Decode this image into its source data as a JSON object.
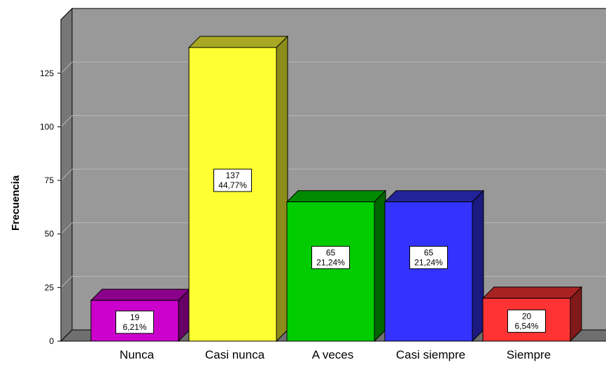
{
  "chart_data": {
    "type": "bar",
    "title": "",
    "xlabel": "",
    "ylabel": "Frecuencia",
    "categories": [
      "Nunca",
      "Casi nunca",
      "A veces",
      "Casi siempre",
      "Siempre"
    ],
    "values": [
      19,
      137,
      65,
      65,
      20
    ],
    "percent_labels": [
      "6,21%",
      "44,77%",
      "21,24%",
      "21,24%",
      "6,54%"
    ],
    "yticks": [
      "0",
      "25",
      "50",
      "75",
      "100",
      "125"
    ],
    "ylim": [
      0,
      150
    ],
    "grid": true,
    "style": "3d-bar",
    "colors": {
      "Nunca": {
        "front": "#cc00cc",
        "top": "#8a008a",
        "side": "#660066"
      },
      "Casi nunca": {
        "front": "#ffff33",
        "top": "#a8a824",
        "side": "#8c8c1a"
      },
      "A veces": {
        "front": "#00cc00",
        "top": "#008a00",
        "side": "#006600"
      },
      "Casi siempre": {
        "front": "#3333ff",
        "top": "#222299",
        "side": "#1a1a80"
      },
      "Siempre": {
        "front": "#ff3333",
        "top": "#a82222",
        "side": "#801a1a"
      }
    },
    "plot_background": "#999999"
  }
}
